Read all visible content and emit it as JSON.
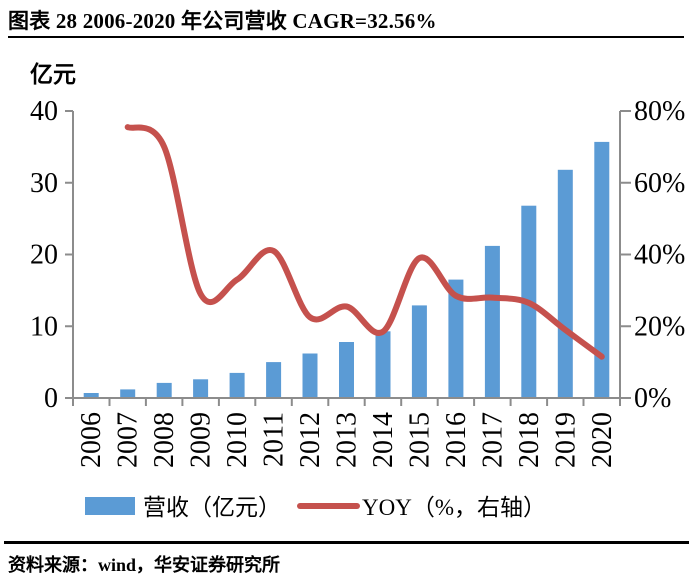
{
  "figure": {
    "title": "图表 28 2006-2020 年公司营收 CAGR=32.56%",
    "source": "资料来源：wind，华安证券研究所"
  },
  "chart_data": {
    "type": "bar",
    "combo": "bar+line",
    "title": "图表 28 2006-2020 年公司营收 CAGR=32.56%",
    "categories": [
      "2006",
      "2007",
      "2008",
      "2009",
      "2010",
      "2011",
      "2012",
      "2013",
      "2014",
      "2015",
      "2016",
      "2017",
      "2018",
      "2019",
      "2020"
    ],
    "series": [
      {
        "name": "营收（亿元）",
        "type": "bar",
        "axis": "left",
        "color": "#5B9BD5",
        "values": [
          0.7,
          1.2,
          2.1,
          2.6,
          3.5,
          5.0,
          6.2,
          7.8,
          9.3,
          12.9,
          16.5,
          21.2,
          26.8,
          31.8,
          35.7
        ]
      },
      {
        "name": "YOY（%，右轴）",
        "type": "line",
        "axis": "right",
        "color": "#C5514D",
        "values": [
          null,
          75.5,
          70,
          29,
          33,
          41,
          22.5,
          25.5,
          18.5,
          39,
          28.5,
          28,
          26.5,
          19,
          11.5
        ]
      }
    ],
    "left_axis": {
      "label": "亿元",
      "ticks": [
        0,
        10,
        20,
        30,
        40
      ],
      "range": [
        0,
        40
      ]
    },
    "right_axis": {
      "ticks": [
        "0%",
        "20%",
        "40%",
        "60%",
        "80%"
      ],
      "tick_values": [
        0,
        20,
        40,
        60,
        80
      ],
      "range": [
        0,
        80
      ]
    },
    "legend_position": "bottom",
    "grid": false,
    "axis_color": "#8C8C8C",
    "text_color": "#000000"
  }
}
